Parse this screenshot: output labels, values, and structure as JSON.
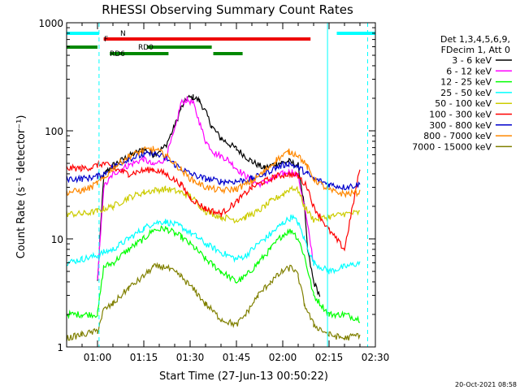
{
  "chart_data": {
    "type": "line",
    "title": "RHESSI Observing Summary Count Rates",
    "xlabel": "Start Time (27-Jun-13 00:50:22)",
    "ylabel": "Count Rate (s⁻¹ detector⁻¹)",
    "x_unit": "minutes",
    "x_start_clock": "00:50:22",
    "xlim": [
      0,
      100
    ],
    "ylim": [
      1,
      1000
    ],
    "yscale": "log",
    "x_ticks": [
      {
        "x": 10,
        "label": "01:00"
      },
      {
        "x": 25,
        "label": "01:15"
      },
      {
        "x": 40,
        "label": "01:30"
      },
      {
        "x": 55,
        "label": "01:45"
      },
      {
        "x": 70,
        "label": "02:00"
      },
      {
        "x": 85,
        "label": "02:15"
      },
      {
        "x": 100,
        "label": "02:30"
      }
    ],
    "y_ticks": [
      {
        "y": 1,
        "label": "1"
      },
      {
        "y": 10,
        "label": "10"
      },
      {
        "y": 100,
        "label": "100"
      },
      {
        "y": 1000,
        "label": "1000"
      }
    ],
    "legend": {
      "placement": "right",
      "header": [
        "Det 1,3,4,5,6,9,",
        "FDecim 1, Att 0"
      ]
    },
    "series": [
      {
        "name": "3 - 6 keV",
        "color": "#000000",
        "x": [
          0,
          5,
          8,
          10,
          12,
          13,
          15,
          20,
          25,
          28,
          32,
          35,
          37,
          39,
          41,
          43,
          45,
          47,
          50,
          55,
          60,
          64,
          68,
          72,
          75,
          77,
          78,
          80,
          82
        ],
        "y": [
          null,
          null,
          null,
          4,
          38,
          42,
          48,
          58,
          68,
          60,
          72,
          110,
          160,
          200,
          205,
          190,
          150,
          110,
          85,
          68,
          52,
          45,
          50,
          52,
          48,
          20,
          8,
          4,
          3
        ]
      },
      {
        "name": "6 - 12 keV",
        "color": "#ff00ff",
        "x": [
          0,
          10,
          12,
          14,
          15,
          20,
          25,
          28,
          32,
          35,
          37,
          39,
          41,
          43,
          45,
          48,
          52,
          55,
          58,
          62,
          66,
          70,
          73,
          75,
          77,
          80
        ],
        "y": [
          null,
          4,
          30,
          36,
          40,
          48,
          55,
          48,
          55,
          100,
          180,
          195,
          180,
          120,
          80,
          62,
          55,
          45,
          38,
          32,
          35,
          40,
          42,
          38,
          20,
          6
        ]
      },
      {
        "name": "12 - 25 keV",
        "color": "#00ff00",
        "x": [
          0,
          5,
          10,
          12,
          15,
          20,
          25,
          28,
          32,
          37,
          42,
          45,
          50,
          55,
          58,
          62,
          66,
          70,
          73,
          75,
          77,
          80,
          85,
          88,
          90,
          95
        ],
        "y": [
          2,
          2,
          2,
          5.5,
          6,
          8,
          10,
          12,
          12.5,
          10.5,
          8,
          6.5,
          5,
          4,
          4.5,
          6,
          8,
          11,
          12,
          10,
          7,
          3,
          2,
          2,
          2,
          1.8
        ]
      },
      {
        "name": "25 - 50 keV",
        "color": "#00ffff",
        "x": [
          0,
          5,
          10,
          12,
          15,
          20,
          25,
          28,
          32,
          37,
          42,
          45,
          50,
          55,
          58,
          62,
          66,
          70,
          73,
          75,
          77,
          80,
          85,
          90,
          95
        ],
        "y": [
          6,
          6.5,
          7,
          7.5,
          8,
          10,
          12.5,
          14,
          14.5,
          13,
          10.5,
          9,
          7.5,
          6.5,
          7,
          9,
          11,
          14,
          16,
          14,
          10,
          6,
          5,
          5.5,
          6
        ]
      },
      {
        "name": "50 - 100 keV",
        "color": "#cccc00",
        "x": [
          0,
          5,
          10,
          12,
          15,
          20,
          25,
          28,
          32,
          37,
          40,
          42,
          45,
          50,
          55,
          58,
          62,
          66,
          70,
          73,
          75,
          77,
          80,
          85,
          90,
          95
        ],
        "y": [
          17,
          17,
          18,
          19,
          20,
          24,
          27,
          28,
          29,
          27,
          25,
          22,
          18,
          16,
          15,
          16,
          18,
          22,
          26,
          30,
          28,
          20,
          15,
          16,
          17,
          17.5
        ]
      },
      {
        "name": "100 - 300 keV",
        "color": "#ff0000",
        "x": [
          0,
          5,
          8,
          10,
          12,
          15,
          20,
          25,
          28,
          32,
          37,
          40,
          45,
          50,
          55,
          60,
          64,
          68,
          72,
          75,
          78,
          80,
          85,
          90,
          95
        ],
        "y": [
          45,
          45,
          46,
          48,
          50,
          45,
          40,
          43,
          44,
          40,
          32,
          24,
          19,
          17,
          22,
          30,
          34,
          38,
          40,
          38,
          30,
          20,
          12,
          8,
          45
        ]
      },
      {
        "name": "300 - 800 keV",
        "color": "#0000cc",
        "x": [
          0,
          5,
          8,
          10,
          12,
          15,
          20,
          25,
          28,
          32,
          37,
          40,
          45,
          50,
          55,
          60,
          64,
          68,
          72,
          75,
          78,
          80,
          85,
          90,
          95
        ],
        "y": [
          36,
          36,
          37,
          38,
          40,
          46,
          55,
          60,
          62,
          56,
          45,
          40,
          36,
          34,
          34,
          36,
          40,
          46,
          50,
          46,
          40,
          36,
          32,
          30,
          32
        ]
      },
      {
        "name": "800 - 7000 keV",
        "color": "#ff8800",
        "x": [
          0,
          5,
          8,
          10,
          12,
          15,
          20,
          25,
          28,
          32,
          37,
          40,
          45,
          50,
          55,
          60,
          64,
          68,
          72,
          75,
          78,
          80,
          85,
          90,
          95
        ],
        "y": [
          27,
          28,
          30,
          33,
          36,
          45,
          58,
          66,
          68,
          60,
          44,
          36,
          30,
          28,
          29,
          34,
          42,
          54,
          64,
          60,
          46,
          36,
          28,
          26,
          27
        ]
      },
      {
        "name": "7000 - 15000 keV",
        "color": "#808000",
        "x": [
          0,
          5,
          10,
          12,
          15,
          20,
          25,
          28,
          32,
          37,
          42,
          45,
          50,
          55,
          58,
          62,
          66,
          70,
          73,
          75,
          77,
          80,
          85,
          90,
          95
        ],
        "y": [
          1.2,
          1.3,
          1.4,
          2.2,
          2.5,
          3.5,
          4.5,
          5.5,
          5.5,
          4.5,
          3.2,
          2.5,
          1.8,
          1.6,
          2,
          3,
          4,
          5,
          5.5,
          4.5,
          2.5,
          1.6,
          1.3,
          1.2,
          1.3
        ]
      }
    ],
    "flag_bars": [
      {
        "label": "N",
        "color": "#00ffff",
        "segments": [
          [
            0,
            10.5
          ],
          [
            87.5,
            100
          ]
        ]
      },
      {
        "label": "F",
        "color": "#ee0000",
        "segments": [
          [
            12,
            79
          ]
        ]
      },
      {
        "label": "RD0",
        "color": "#008800",
        "segments": [
          [
            0,
            10
          ],
          [
            26,
            47
          ]
        ]
      },
      {
        "label": "RD6",
        "color": "#008800",
        "segments": [
          [
            14,
            33
          ],
          [
            47.5,
            57
          ]
        ]
      }
    ],
    "vlines": [
      {
        "x": 10.5,
        "color": "#00ffff",
        "style": "dashed"
      },
      {
        "x": 84.5,
        "color": "#00ffff",
        "style": "solid"
      },
      {
        "x": 97.5,
        "color": "#00ffff",
        "style": "dashed"
      }
    ],
    "timestamp": "20-Oct-2021 08:58"
  }
}
